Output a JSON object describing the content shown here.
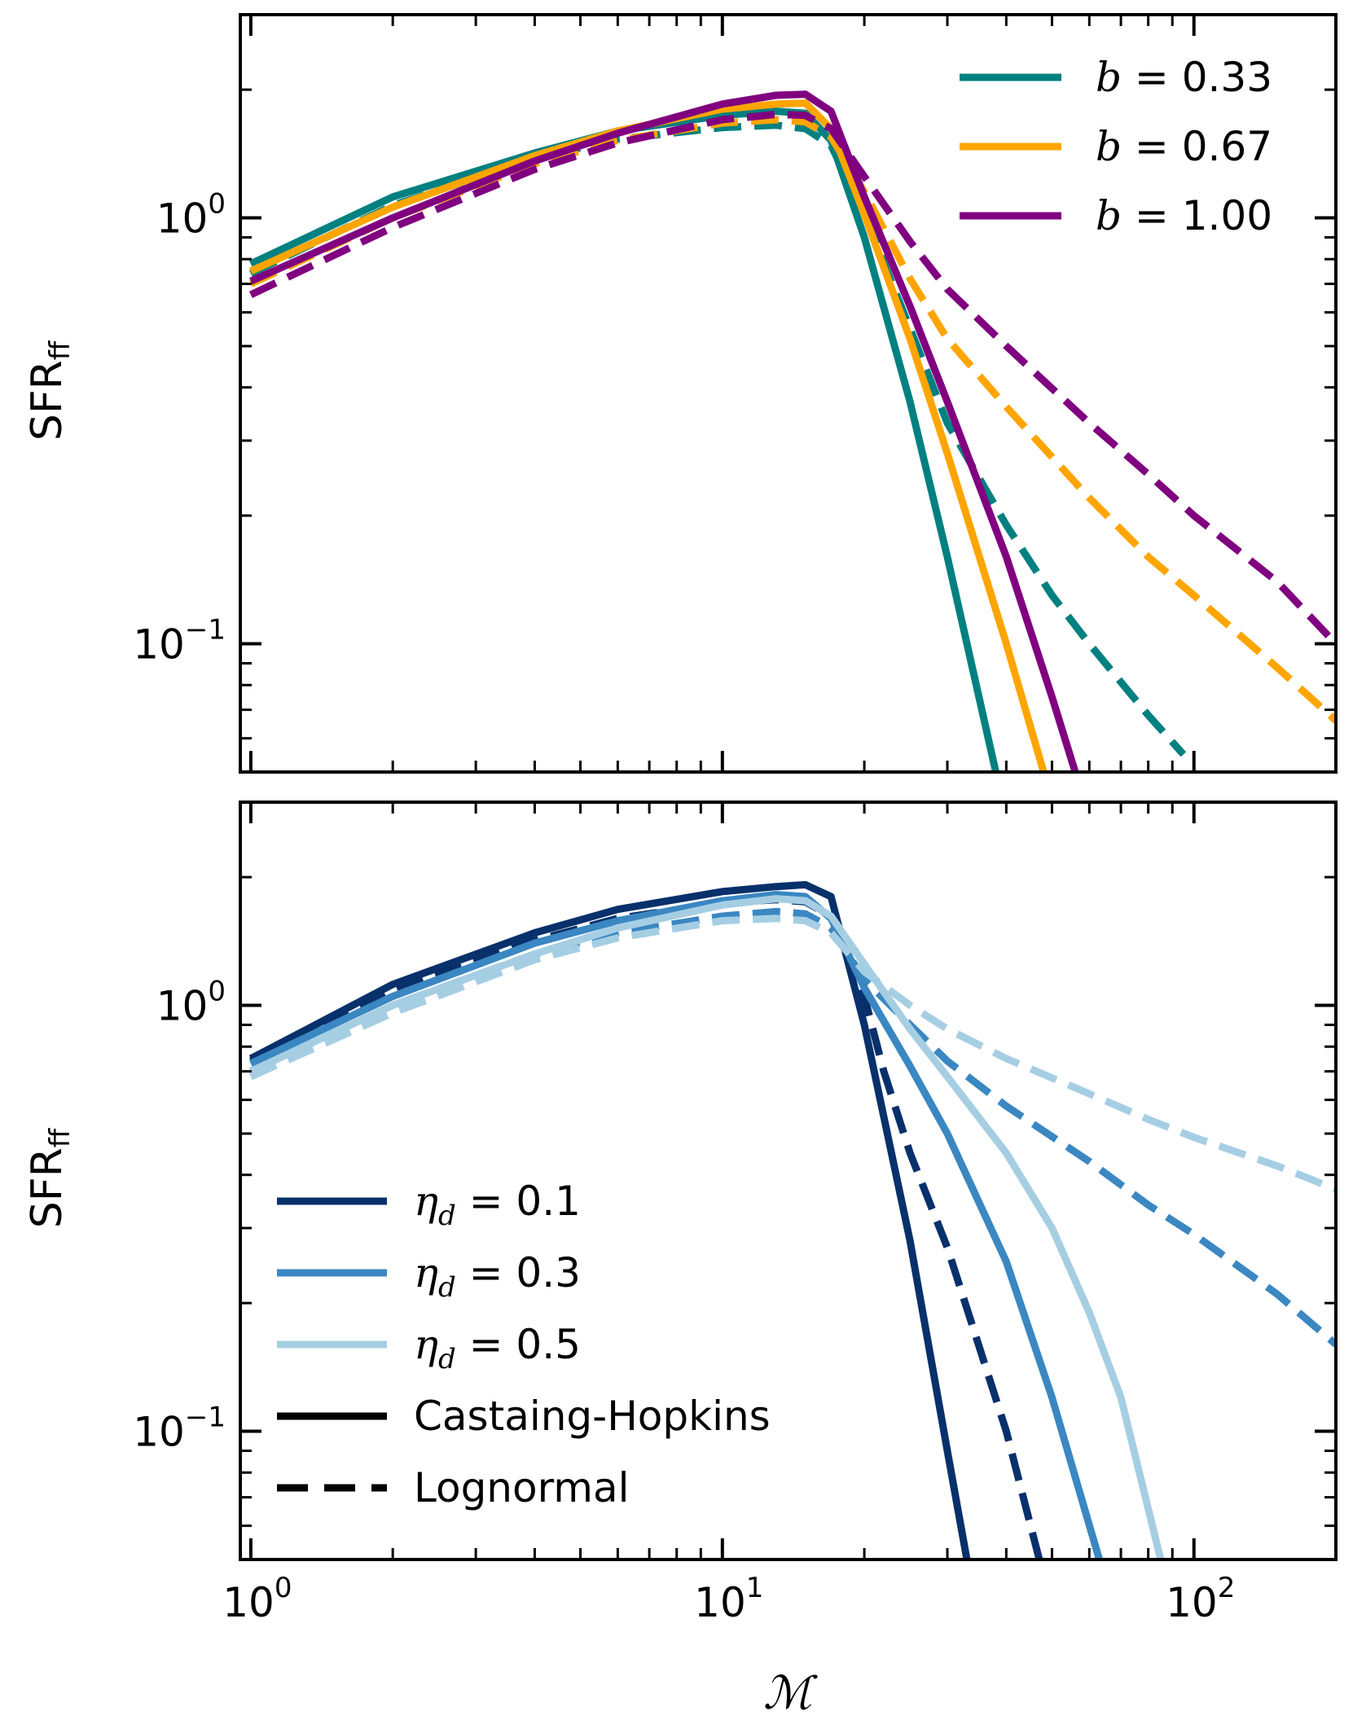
{
  "chart_data": [
    {
      "type": "line",
      "panel": "top",
      "xscale": "log",
      "yscale": "log",
      "xlim": [
        0.95,
        200
      ],
      "ylim": [
        0.05,
        3.0
      ],
      "xlabel": "",
      "ylabel": "SFR",
      "ylabel_sub": "ff",
      "y_ticks": [
        {
          "value": 1.0,
          "base": "10",
          "exp": "0"
        },
        {
          "value": 0.1,
          "base": "10",
          "exp": "−1"
        }
      ],
      "legend_position": "top-right",
      "legend": [
        {
          "prefix": "b",
          "text": " = 0.33",
          "color": "#008080"
        },
        {
          "prefix": "b",
          "text": " = 0.67",
          "color": "#ffa500"
        },
        {
          "prefix": "b",
          "text": " = 1.00",
          "color": "#800080"
        }
      ],
      "series": [
        {
          "name": "b = 0.33 Castaing-Hopkins",
          "color": "#008080",
          "style": "solid",
          "width": 9,
          "x": [
            1.0,
            2.0,
            4.0,
            6.0,
            10.0,
            13.0,
            15.0,
            17.0,
            20.0,
            25.0,
            30.0,
            35.0,
            38.0
          ],
          "y": [
            0.78,
            1.12,
            1.42,
            1.6,
            1.74,
            1.78,
            1.76,
            1.52,
            0.9,
            0.37,
            0.16,
            0.075,
            0.05
          ]
        },
        {
          "name": "b = 0.33 Lognormal",
          "color": "#008080",
          "style": "dashed",
          "width": 9,
          "x": [
            1.0,
            2.0,
            4.0,
            6.0,
            10.0,
            13.0,
            15.0,
            17.0,
            20.0,
            25.0,
            30.0,
            40.0,
            50.0,
            60.0,
            80.0,
            95.0
          ],
          "y": [
            0.74,
            1.07,
            1.38,
            1.53,
            1.63,
            1.65,
            1.62,
            1.48,
            1.02,
            0.55,
            0.33,
            0.19,
            0.13,
            0.1,
            0.068,
            0.055
          ]
        },
        {
          "name": "b = 0.67 Castaing-Hopkins",
          "color": "#ffa500",
          "style": "solid",
          "width": 9,
          "x": [
            1.0,
            2.0,
            4.0,
            6.0,
            10.0,
            13.0,
            15.0,
            17.0,
            20.0,
            25.0,
            30.0,
            40.0,
            48.0
          ],
          "y": [
            0.75,
            1.06,
            1.4,
            1.6,
            1.8,
            1.85,
            1.86,
            1.62,
            1.02,
            0.52,
            0.28,
            0.1,
            0.05
          ]
        },
        {
          "name": "b = 0.67 Lognormal",
          "color": "#ffa500",
          "style": "dashed",
          "width": 9,
          "x": [
            1.0,
            2.0,
            4.0,
            6.0,
            10.0,
            13.0,
            15.0,
            17.0,
            20.0,
            25.0,
            30.0,
            40.0,
            60.0,
            80.0,
            100.0,
            150.0,
            200.0
          ],
          "y": [
            0.7,
            1.0,
            1.34,
            1.52,
            1.67,
            1.7,
            1.68,
            1.55,
            1.15,
            0.72,
            0.52,
            0.36,
            0.22,
            0.16,
            0.13,
            0.088,
            0.066
          ]
        },
        {
          "name": "b = 1.00 Castaing-Hopkins",
          "color": "#800080",
          "style": "solid",
          "width": 9,
          "x": [
            1.0,
            2.0,
            4.0,
            6.0,
            10.0,
            13.0,
            15.0,
            17.0,
            20.0,
            25.0,
            30.0,
            40.0,
            50.0,
            56.0
          ],
          "y": [
            0.71,
            1.0,
            1.36,
            1.58,
            1.85,
            1.94,
            1.95,
            1.78,
            1.12,
            0.62,
            0.37,
            0.16,
            0.075,
            0.05
          ]
        },
        {
          "name": "b = 1.00 Lognormal",
          "color": "#800080",
          "style": "dashed",
          "width": 9,
          "x": [
            1.0,
            2.0,
            4.0,
            6.0,
            10.0,
            13.0,
            15.0,
            17.0,
            20.0,
            25.0,
            30.0,
            40.0,
            60.0,
            80.0,
            100.0,
            150.0,
            200.0
          ],
          "y": [
            0.66,
            0.95,
            1.3,
            1.5,
            1.7,
            1.75,
            1.74,
            1.62,
            1.25,
            0.88,
            0.68,
            0.5,
            0.33,
            0.25,
            0.2,
            0.14,
            0.1
          ]
        }
      ]
    },
    {
      "type": "line",
      "panel": "bottom",
      "xscale": "log",
      "yscale": "log",
      "xlim": [
        0.95,
        200
      ],
      "ylim": [
        0.05,
        3.0
      ],
      "xlabel": "ℳ",
      "ylabel": "SFR",
      "ylabel_sub": "ff",
      "x_ticks": [
        {
          "value": 1,
          "base": "10",
          "exp": "0"
        },
        {
          "value": 10,
          "base": "10",
          "exp": "1"
        },
        {
          "value": 100,
          "base": "10",
          "exp": "2"
        }
      ],
      "y_ticks": [
        {
          "value": 1.0,
          "base": "10",
          "exp": "0"
        },
        {
          "value": 0.1,
          "base": "10",
          "exp": "−1"
        }
      ],
      "legend_position": "lower-left",
      "legend": [
        {
          "prefix": "η",
          "sub": "d",
          "text": " = 0.1",
          "color": "#08306b",
          "style": "solid"
        },
        {
          "prefix": "η",
          "sub": "d",
          "text": " = 0.3",
          "color": "#3a87c2",
          "style": "solid"
        },
        {
          "prefix": "η",
          "sub": "d",
          "text": " = 0.5",
          "color": "#a6cee3",
          "style": "solid"
        },
        {
          "prefix": "",
          "sub": "",
          "text": "Castaing-Hopkins",
          "color": "#000000",
          "style": "solid"
        },
        {
          "prefix": "",
          "sub": "",
          "text": "Lognormal",
          "color": "#000000",
          "style": "dashed"
        }
      ],
      "series": [
        {
          "name": "ηd = 0.1 Castaing-Hopkins",
          "color": "#08306b",
          "style": "solid",
          "width": 9,
          "x": [
            1.0,
            2.0,
            4.0,
            6.0,
            10.0,
            13.0,
            15.0,
            17.0,
            20.0,
            25.0,
            30.0,
            33.0
          ],
          "y": [
            0.75,
            1.12,
            1.48,
            1.68,
            1.85,
            1.9,
            1.92,
            1.8,
            0.9,
            0.28,
            0.09,
            0.05
          ]
        },
        {
          "name": "ηd = 0.1 Lognormal",
          "color": "#08306b",
          "style": "dashed",
          "width": 9,
          "x": [
            1.0,
            2.0,
            4.0,
            6.0,
            10.0,
            13.0,
            15.0,
            17.0,
            20.0,
            22.0,
            25.0,
            30.0,
            40.0,
            47.0
          ],
          "y": [
            0.74,
            1.08,
            1.42,
            1.6,
            1.74,
            1.77,
            1.75,
            1.62,
            1.05,
            0.7,
            0.45,
            0.27,
            0.1,
            0.05
          ]
        },
        {
          "name": "ηd = 0.3 Castaing-Hopkins",
          "color": "#3a87c2",
          "style": "solid",
          "width": 9,
          "x": [
            1.0,
            2.0,
            4.0,
            6.0,
            10.0,
            13.0,
            15.0,
            17.0,
            20.0,
            25.0,
            30.0,
            40.0,
            50.0,
            63.0
          ],
          "y": [
            0.73,
            1.05,
            1.4,
            1.58,
            1.76,
            1.82,
            1.8,
            1.6,
            1.1,
            0.72,
            0.5,
            0.25,
            0.12,
            0.05
          ]
        },
        {
          "name": "ηd = 0.3 Lognormal",
          "color": "#3a87c2",
          "style": "dashed",
          "width": 9,
          "x": [
            1.0,
            2.0,
            4.0,
            6.0,
            10.0,
            13.0,
            15.0,
            17.0,
            20.0,
            25.0,
            30.0,
            40.0,
            60.0,
            80.0,
            100.0,
            150.0,
            200.0
          ],
          "y": [
            0.7,
            1.0,
            1.32,
            1.48,
            1.62,
            1.66,
            1.64,
            1.52,
            1.15,
            0.9,
            0.74,
            0.58,
            0.43,
            0.34,
            0.29,
            0.21,
            0.16
          ]
        },
        {
          "name": "ηd = 0.5 Castaing-Hopkins",
          "color": "#a6cee3",
          "style": "solid",
          "width": 9,
          "x": [
            1.0,
            2.0,
            4.0,
            6.0,
            10.0,
            13.0,
            15.0,
            17.0,
            20.0,
            25.0,
            30.0,
            40.0,
            50.0,
            60.0,
            70.0,
            85.0
          ],
          "y": [
            0.7,
            1.0,
            1.32,
            1.52,
            1.72,
            1.78,
            1.76,
            1.62,
            1.25,
            0.88,
            0.68,
            0.45,
            0.3,
            0.19,
            0.12,
            0.05
          ]
        },
        {
          "name": "ηd = 0.5 Lognormal",
          "color": "#a6cee3",
          "style": "dashed",
          "width": 9,
          "x": [
            1.0,
            2.0,
            4.0,
            6.0,
            10.0,
            13.0,
            15.0,
            17.0,
            20.0,
            25.0,
            30.0,
            40.0,
            60.0,
            80.0,
            100.0,
            150.0,
            200.0
          ],
          "y": [
            0.68,
            0.96,
            1.28,
            1.44,
            1.58,
            1.6,
            1.58,
            1.48,
            1.2,
            1.0,
            0.88,
            0.75,
            0.62,
            0.54,
            0.49,
            0.42,
            0.37
          ]
        }
      ]
    }
  ]
}
